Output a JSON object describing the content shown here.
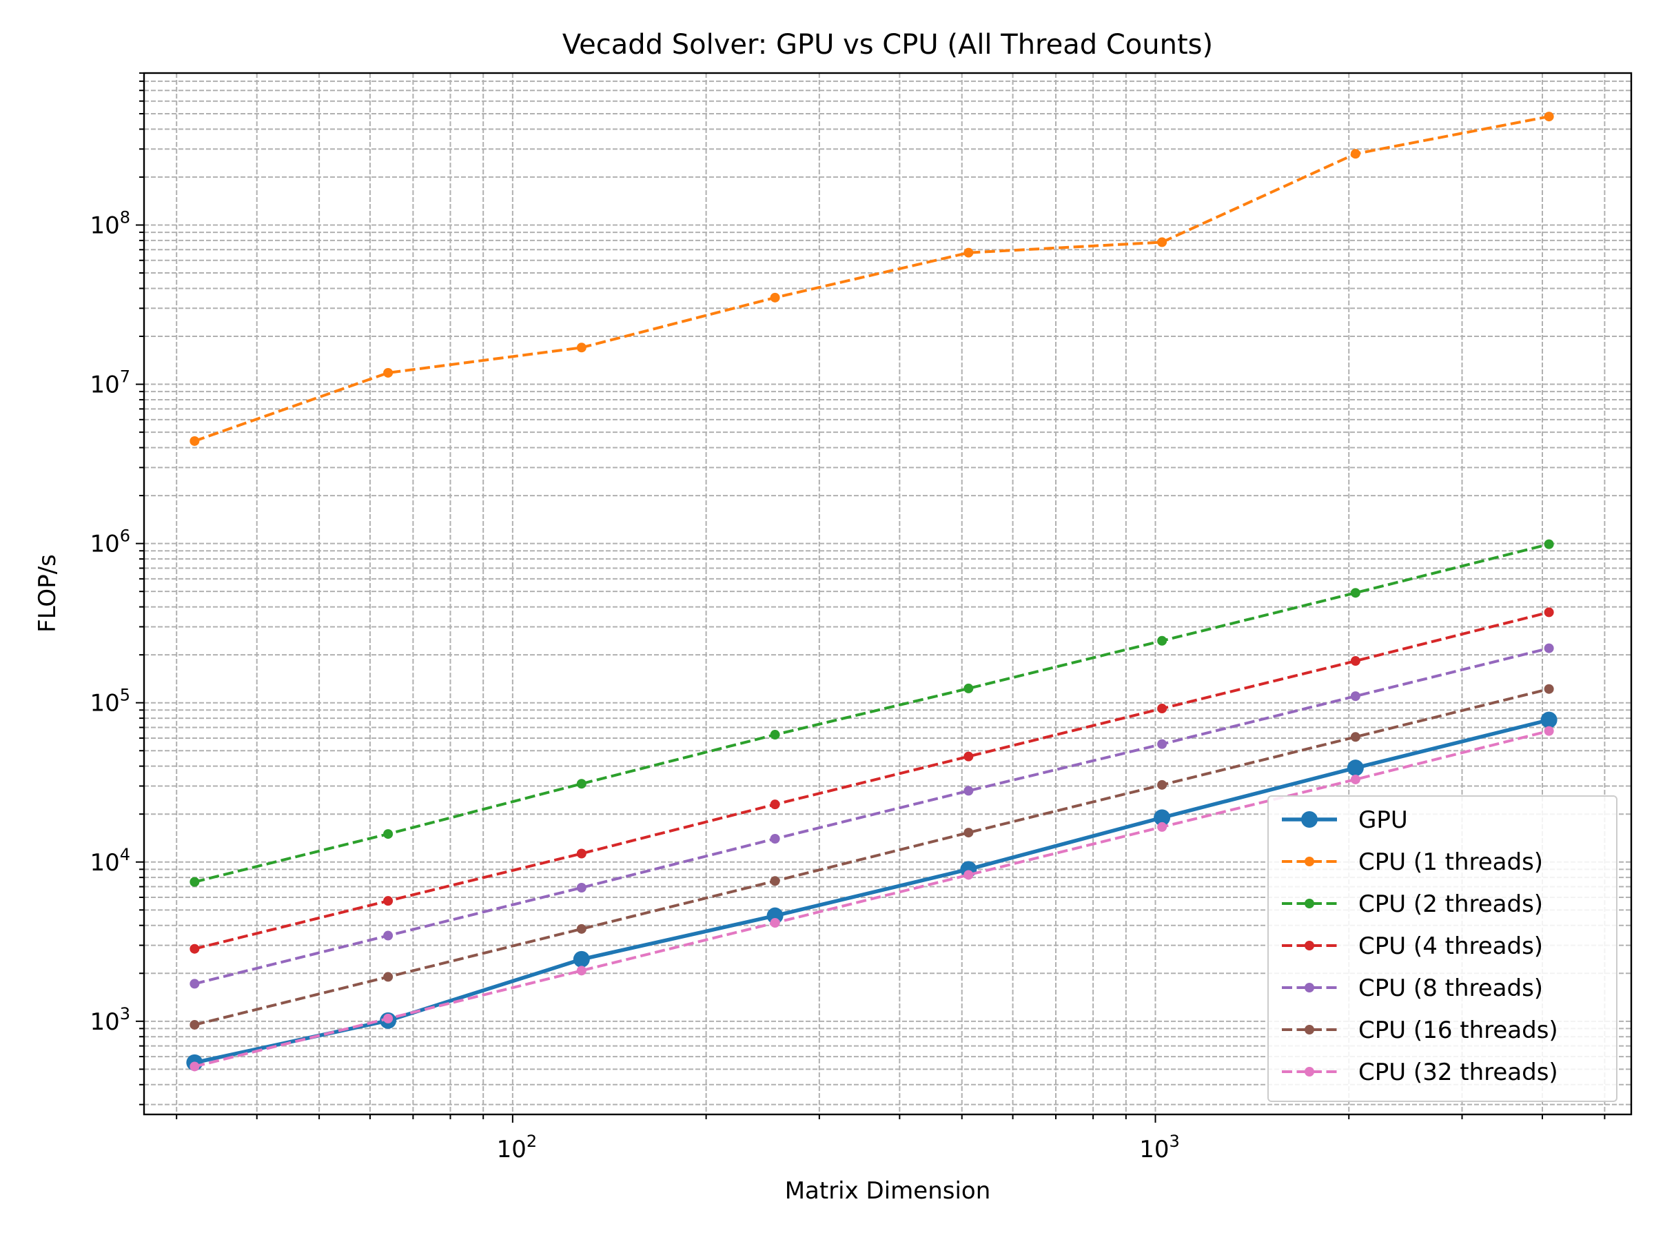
{
  "chart_data": {
    "type": "line",
    "title": "Vecadd Solver: GPU vs CPU (All Thread Counts)",
    "xlabel": "Matrix Dimension",
    "ylabel": "FLOP/s",
    "xscale": "log",
    "yscale": "log",
    "xlim": [
      26.7,
      5500
    ],
    "ylim": [
      260,
      900000000
    ],
    "x_ticks": [
      {
        "value": 100,
        "base": "10",
        "exp": "2"
      },
      {
        "value": 1000,
        "base": "10",
        "exp": "3"
      }
    ],
    "y_ticks": [
      {
        "value": 1000,
        "base": "10",
        "exp": "3"
      },
      {
        "value": 10000,
        "base": "10",
        "exp": "4"
      },
      {
        "value": 100000,
        "base": "10",
        "exp": "5"
      },
      {
        "value": 1000000,
        "base": "10",
        "exp": "6"
      },
      {
        "value": 10000000,
        "base": "10",
        "exp": "7"
      },
      {
        "value": 100000000,
        "base": "10",
        "exp": "8"
      }
    ],
    "grid": true,
    "legend_position": "lower-right",
    "x": [
      32,
      64,
      128,
      256,
      512,
      1024,
      2048,
      4096
    ],
    "series": [
      {
        "name": "GPU",
        "color": "#1f77b4",
        "style": "solid",
        "marker": "large",
        "values": [
          550,
          1010,
          2450,
          4600,
          9000,
          19000,
          39000,
          78000
        ]
      },
      {
        "name": "CPU (1 threads)",
        "color": "#ff7f0e",
        "style": "dashed",
        "marker": "small",
        "values": [
          4400000,
          11800000,
          17000000,
          35000000,
          67000000,
          78000000,
          280000000,
          480000000
        ]
      },
      {
        "name": "CPU (2 threads)",
        "color": "#2ca02c",
        "style": "dashed",
        "marker": "small",
        "values": [
          7500,
          15000,
          31000,
          63000,
          123000,
          245000,
          490000,
          990000
        ]
      },
      {
        "name": "CPU (4 threads)",
        "color": "#d62728",
        "style": "dashed",
        "marker": "small",
        "values": [
          2850,
          5700,
          11300,
          23000,
          46000,
          92000,
          183000,
          370000
        ]
      },
      {
        "name": "CPU (8 threads)",
        "color": "#9467bd",
        "style": "dashed",
        "marker": "small",
        "values": [
          1720,
          3450,
          6900,
          14000,
          28000,
          55000,
          110000,
          220000
        ]
      },
      {
        "name": "CPU (16 threads)",
        "color": "#8c564b",
        "style": "dashed",
        "marker": "small",
        "values": [
          950,
          1900,
          3800,
          7600,
          15300,
          30500,
          61000,
          122000
        ]
      },
      {
        "name": "CPU (32 threads)",
        "color": "#e377c2",
        "style": "dashed",
        "marker": "small",
        "values": [
          520,
          1040,
          2080,
          4150,
          8300,
          16600,
          33000,
          66500
        ]
      }
    ]
  }
}
